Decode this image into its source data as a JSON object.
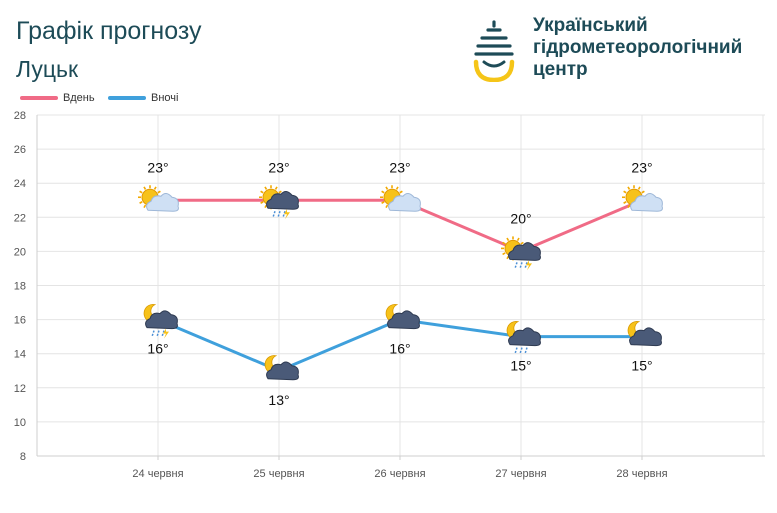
{
  "header": {
    "title": "Графік прогнозу",
    "city": "Луцьк",
    "org_lines": [
      "Український",
      "гідрометеорологічний",
      "центр"
    ]
  },
  "legend": {
    "day_label": "Вдень",
    "night_label": "Вночі"
  },
  "colors": {
    "day": "#f06b86",
    "night": "#3fa0dc",
    "brand": "#1d4b57",
    "logo_yellow": "#f5c518"
  },
  "chart_data": {
    "type": "line",
    "categories": [
      "24 червня",
      "25 червня",
      "26 червня",
      "27 червня",
      "28 червня"
    ],
    "series": [
      {
        "name": "Вдень",
        "values": [
          23,
          23,
          23,
          20,
          23
        ],
        "labels": [
          "23°",
          "23°",
          "23°",
          "20°",
          "23°"
        ],
        "icons": [
          "sun-partly-cloudy-icon",
          "sun-cloud-rain-thunder-icon",
          "sun-partly-cloudy-icon",
          "sun-cloud-rain-thunder-icon",
          "sun-partly-cloudy-icon"
        ]
      },
      {
        "name": "Вночі",
        "values": [
          16,
          13,
          16,
          15,
          15
        ],
        "labels": [
          "16°",
          "13°",
          "16°",
          "15°",
          "15°"
        ],
        "icons": [
          "moon-cloud-rain-thunder-icon",
          "moon-cloud-icon",
          "moon-cloud-icon",
          "moon-cloud-rain-icon",
          "moon-cloud-icon"
        ]
      }
    ],
    "ylim": [
      8,
      28
    ],
    "yticks": [
      8,
      10,
      12,
      14,
      16,
      18,
      20,
      22,
      24,
      26,
      28
    ],
    "grid": true,
    "legend_position": "top-left"
  }
}
